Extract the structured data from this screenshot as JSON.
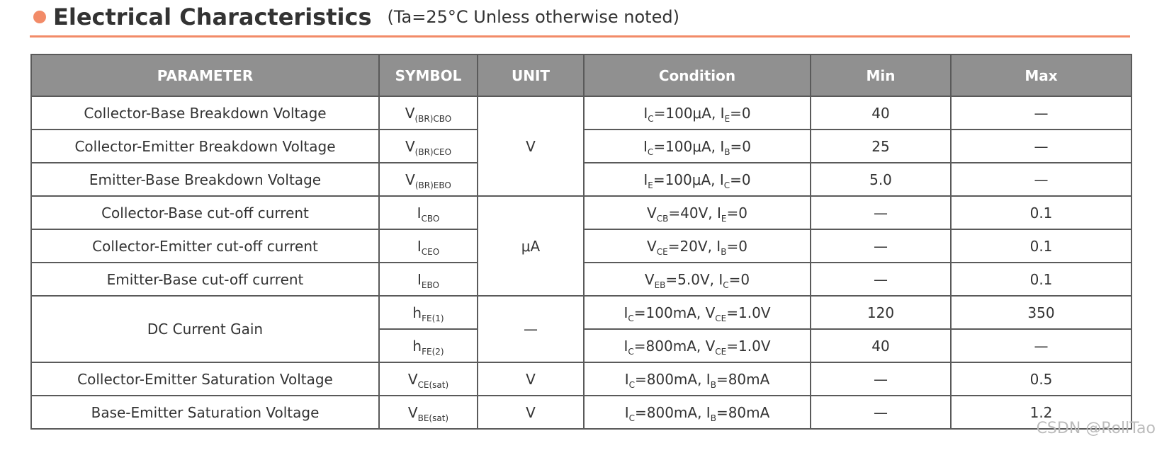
{
  "header": {
    "title": "Electrical Characteristics",
    "subtitle": "(Ta=25°C Unless otherwise noted)"
  },
  "table": {
    "columns": [
      "PARAMETER",
      "SYMBOL",
      "UNIT",
      "Condition",
      "Min",
      "Max"
    ],
    "rows": [
      {
        "parameter": "Collector-Base Breakdown Voltage",
        "symbol": {
          "base": "V",
          "sub": "(BR)CBO"
        },
        "unit": "V",
        "condition": [
          {
            "t": "I"
          },
          {
            "s": "C"
          },
          {
            "t": "=100μA, I"
          },
          {
            "s": "E"
          },
          {
            "t": "=0"
          }
        ],
        "min": "40",
        "max": "—"
      },
      {
        "parameter": "Collector-Emitter Breakdown Voltage",
        "symbol": {
          "base": "V",
          "sub": "(BR)CEO"
        },
        "condition": [
          {
            "t": "I"
          },
          {
            "s": "C"
          },
          {
            "t": "=100μA, I"
          },
          {
            "s": "B"
          },
          {
            "t": "=0"
          }
        ],
        "min": "25",
        "max": "—"
      },
      {
        "parameter": "Emitter-Base Breakdown Voltage",
        "symbol": {
          "base": "V",
          "sub": "(BR)EBO"
        },
        "condition": [
          {
            "t": "I"
          },
          {
            "s": "E"
          },
          {
            "t": "=100μA, I"
          },
          {
            "s": "C"
          },
          {
            "t": "=0"
          }
        ],
        "min": "5.0",
        "max": "—"
      },
      {
        "parameter": "Collector-Base cut-off current",
        "symbol": {
          "base": "I",
          "sub": "CBO"
        },
        "unit": "μA",
        "condition": [
          {
            "t": "V"
          },
          {
            "s": "CB"
          },
          {
            "t": "=40V, I"
          },
          {
            "s": "E"
          },
          {
            "t": "=0"
          }
        ],
        "min": "—",
        "max": "0.1"
      },
      {
        "parameter": "Collector-Emitter cut-off current",
        "symbol": {
          "base": "I",
          "sub": "CEO"
        },
        "condition": [
          {
            "t": "V"
          },
          {
            "s": "CE"
          },
          {
            "t": "=20V, I"
          },
          {
            "s": "B"
          },
          {
            "t": "=0"
          }
        ],
        "min": "—",
        "max": "0.1"
      },
      {
        "parameter": "Emitter-Base cut-off current",
        "symbol": {
          "base": "I",
          "sub": "EBO"
        },
        "condition": [
          {
            "t": "V"
          },
          {
            "s": "EB"
          },
          {
            "t": "=5.0V, I"
          },
          {
            "s": "C"
          },
          {
            "t": "=0"
          }
        ],
        "min": "—",
        "max": "0.1"
      },
      {
        "parameter": "DC Current Gain",
        "symbol": {
          "base": "h",
          "sub": "FE(1)"
        },
        "unit": "—",
        "condition": [
          {
            "t": "I"
          },
          {
            "s": "C"
          },
          {
            "t": "=100mA, V"
          },
          {
            "s": "CE"
          },
          {
            "t": "=1.0V"
          }
        ],
        "min": "120",
        "max": "350"
      },
      {
        "symbol": {
          "base": "h",
          "sub": "FE(2)"
        },
        "condition": [
          {
            "t": "I"
          },
          {
            "s": "C"
          },
          {
            "t": "=800mA, V"
          },
          {
            "s": "CE"
          },
          {
            "t": "=1.0V"
          }
        ],
        "min": "40",
        "max": "—"
      },
      {
        "parameter": "Collector-Emitter Saturation Voltage",
        "symbol": {
          "base": "V",
          "sub": "CE(sat)"
        },
        "unit": "V",
        "condition": [
          {
            "t": "I"
          },
          {
            "s": "C"
          },
          {
            "t": "=800mA, I"
          },
          {
            "s": "B"
          },
          {
            "t": "=80mA"
          }
        ],
        "min": "—",
        "max": "0.5"
      },
      {
        "parameter": "Base-Emitter Saturation Voltage",
        "symbol": {
          "base": "V",
          "sub": "BE(sat)"
        },
        "unit": "V",
        "condition": [
          {
            "t": "I"
          },
          {
            "s": "C"
          },
          {
            "t": "=800mA, I"
          },
          {
            "s": "B"
          },
          {
            "t": "=80mA"
          }
        ],
        "min": "—",
        "max": "1.2"
      }
    ]
  },
  "watermark": "CSDN @RollTao",
  "colors": {
    "accent": "#f28b68",
    "header_bg": "#909090",
    "border": "#5a5a5a"
  }
}
